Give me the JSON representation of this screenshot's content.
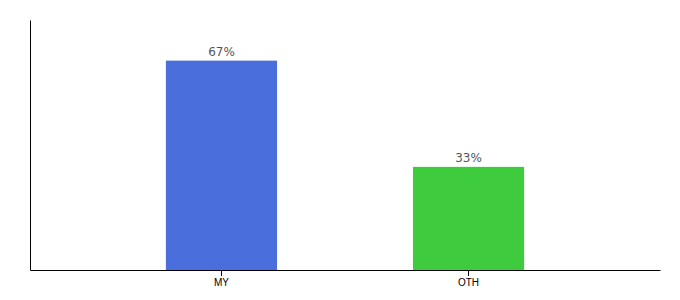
{
  "chart_data": {
    "type": "bar",
    "categories": [
      "MY",
      "OTH"
    ],
    "values": [
      67,
      33
    ],
    "colors": [
      "#4a6fdc",
      "#3ecb3e"
    ],
    "ylim": [
      0,
      80
    ],
    "data_labels": true,
    "value_labels": [
      "67%",
      "33%"
    ],
    "tick_labels": "x"
  }
}
